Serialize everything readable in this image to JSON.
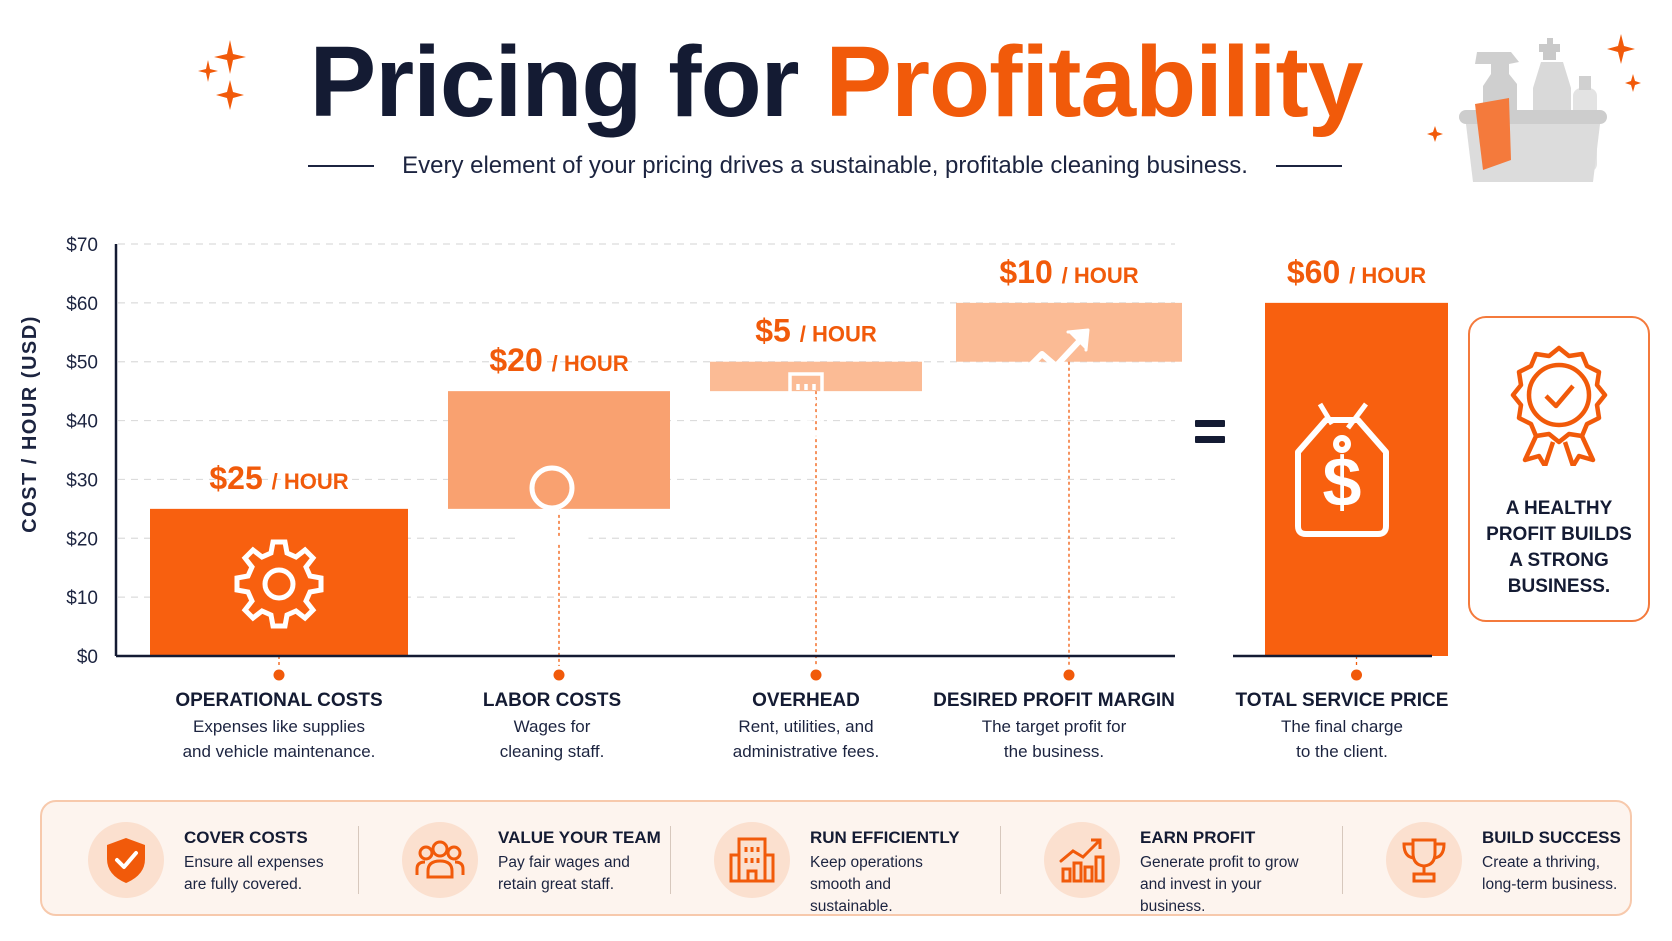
{
  "header": {
    "title_part1": "Pricing for",
    "title_part2": "Profitability",
    "subtitle": "Every element of your pricing drives a sustainable, profitable cleaning business."
  },
  "colors": {
    "accent": "#f15a0a",
    "navy": "#141b33",
    "bar_dark": "#f8600f",
    "bar_mid": "#f9a170",
    "bar_light": "#fbbb95"
  },
  "chart_data": {
    "type": "bar",
    "subtype": "waterfall",
    "ylabel": "COST / HOUR (USD)",
    "ylim": [
      0,
      70
    ],
    "yticks": [
      "$0",
      "$10",
      "$20",
      "$30",
      "$40",
      "$50",
      "$60",
      "$70"
    ],
    "grid": true,
    "categories": [
      "OPERATIONAL COSTS",
      "LABOR COSTS",
      "OVERHEAD",
      "DESIRED PROFIT MARGIN",
      "TOTAL SERVICE PRICE"
    ],
    "values": [
      25,
      20,
      5,
      10,
      60
    ],
    "bases": [
      0,
      25,
      45,
      50,
      0
    ],
    "value_labels": [
      {
        "amount": "$25",
        "unit": "/ HOUR"
      },
      {
        "amount": "$20",
        "unit": "/ HOUR"
      },
      {
        "amount": "$5",
        "unit": "/ HOUR"
      },
      {
        "amount": "$10",
        "unit": "/ HOUR"
      },
      {
        "amount": "$60",
        "unit": "/ HOUR"
      }
    ],
    "descriptions": [
      "Expenses like supplies\nand vehicle maintenance.",
      "Wages for\ncleaning staff.",
      "Rent, utilities, and\nadministrative fees.",
      "The target profit for\nthe business.",
      "The final charge\nto the client."
    ],
    "icons": [
      "gear-icon",
      "person-icon",
      "building-icon",
      "trend-up-icon",
      "price-tag-icon"
    ],
    "equals_sign": "="
  },
  "callout": {
    "icon": "badge-check-icon",
    "text": "A HEALTHY\nPROFIT BUILDS\nA STRONG\nBUSINESS."
  },
  "pillars": [
    {
      "icon": "shield-check-icon",
      "title": "COVER COSTS",
      "desc": "Ensure all expenses\nare fully covered."
    },
    {
      "icon": "team-icon",
      "title": "VALUE YOUR TEAM",
      "desc": "Pay fair wages and\nretain great staff."
    },
    {
      "icon": "building-icon",
      "title": "RUN EFFICIENTLY",
      "desc": "Keep operations\nsmooth and sustainable."
    },
    {
      "icon": "growth-chart-icon",
      "title": "EARN PROFIT",
      "desc": "Generate profit to grow\nand invest in your business."
    },
    {
      "icon": "trophy-icon",
      "title": "BUILD SUCCESS",
      "desc": "Create a thriving,\nlong-term business."
    }
  ]
}
